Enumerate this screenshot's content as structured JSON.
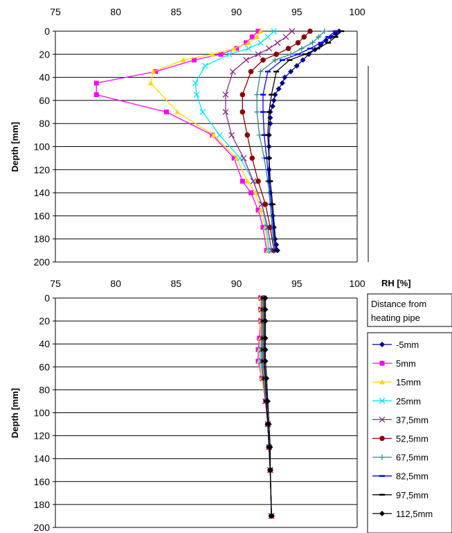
{
  "series_styles": [
    {
      "color": "#00008b",
      "marker": "diamond"
    },
    {
      "color": "#ff00ff",
      "marker": "square"
    },
    {
      "color": "#ffd700",
      "marker": "triangle"
    },
    {
      "color": "#00e5ff",
      "marker": "x"
    },
    {
      "color": "#8b2a8b",
      "marker": "x"
    },
    {
      "color": "#8b0000",
      "marker": "circle"
    },
    {
      "color": "#2e8b8b",
      "marker": "plus"
    },
    {
      "color": "#0000ff",
      "marker": "dash"
    },
    {
      "color": "#000000",
      "marker": "dash"
    },
    {
      "color": "#000000",
      "marker": "diamond"
    }
  ],
  "legend": {
    "title": "Distance from heating pipe",
    "title_lines": [
      "Distance from",
      "heating pipe"
    ],
    "placement": "right-middle"
  },
  "chart_data": [
    {
      "type": "line",
      "x_axis_position": "top",
      "xlabel": "RH [%]",
      "ylabel": "Depth [mm]",
      "xlim": [
        75,
        100
      ],
      "ylim": [
        0,
        200
      ],
      "y_inverted": true,
      "x_ticks": [
        75,
        80,
        85,
        90,
        95,
        100
      ],
      "y_ticks": [
        0,
        20,
        40,
        60,
        80,
        100,
        120,
        140,
        160,
        180,
        200
      ],
      "grid": "horizontal",
      "series": [
        {
          "name": "-5mm",
          "x": [
            98.5,
            98.2,
            97.8,
            97.4,
            97,
            96.5,
            96,
            95.5,
            95,
            94.5,
            94,
            93.8,
            93.5,
            93.2,
            93.1,
            93,
            92.8,
            92.8,
            92.8,
            92.7,
            92.7,
            92.7,
            92.7,
            92.7,
            92.8,
            92.9,
            93,
            93.1,
            93.2,
            93.3,
            93.4
          ],
          "y": [
            0,
            2,
            5,
            8,
            12,
            16,
            20,
            25,
            30,
            35,
            40,
            45,
            50,
            55,
            60,
            65,
            70,
            75,
            80,
            90,
            100,
            110,
            120,
            130,
            140,
            150,
            160,
            170,
            180,
            185,
            190
          ]
        },
        {
          "name": "5mm",
          "x": [
            91.8,
            91.3,
            90.8,
            90,
            88.7,
            86.5,
            83.3,
            78.4,
            78.4,
            84.2,
            88,
            89.8,
            90.5,
            91.2,
            91.8,
            92.2,
            92.5
          ],
          "y": [
            0,
            5,
            10,
            15,
            20,
            25,
            35,
            45,
            55,
            70,
            90,
            110,
            130,
            140,
            155,
            170,
            190
          ]
        },
        {
          "name": "15mm",
          "x": [
            92,
            91.7,
            91,
            89.8,
            88,
            85.6,
            83.1,
            82.9,
            85.1,
            88.1,
            90,
            90.9,
            91.6,
            92,
            92.4,
            92.6
          ],
          "y": [
            0,
            5,
            10,
            15,
            20,
            25,
            35,
            45,
            70,
            90,
            110,
            130,
            140,
            155,
            170,
            190
          ]
        },
        {
          "name": "25mm",
          "x": [
            93.1,
            92.6,
            92,
            91,
            89.4,
            87.4,
            86.6,
            86.7,
            87.2,
            88.6,
            90.3,
            91.4,
            92.1,
            92.5,
            92.7
          ],
          "y": [
            0,
            5,
            10,
            15,
            20,
            30,
            45,
            55,
            70,
            90,
            110,
            130,
            150,
            170,
            190
          ]
        },
        {
          "name": "37,5mm",
          "x": [
            94.6,
            94.1,
            93.4,
            92.7,
            91.8,
            90.8,
            89.7,
            89.1,
            89.1,
            89.6,
            90.6,
            91.4,
            92.1,
            92.6,
            92.9
          ],
          "y": [
            0,
            5,
            10,
            15,
            20,
            25,
            35,
            55,
            70,
            90,
            110,
            130,
            150,
            170,
            190
          ]
        },
        {
          "name": "52,5mm",
          "x": [
            96.1,
            95.6,
            95.1,
            94.3,
            93.3,
            92.2,
            91.2,
            90.5,
            90.5,
            90.9,
            91.3,
            91.8,
            92.4,
            92.8,
            93.1
          ],
          "y": [
            0,
            5,
            10,
            15,
            20,
            25,
            35,
            55,
            70,
            90,
            110,
            130,
            150,
            170,
            190
          ]
        },
        {
          "name": "67,5mm",
          "x": [
            97.3,
            96.8,
            96.3,
            95.4,
            94.5,
            93.2,
            92,
            91.7,
            91.7,
            91.9,
            92.3,
            92.6,
            92.8,
            93.1
          ],
          "y": [
            0,
            5,
            10,
            15,
            20,
            25,
            35,
            55,
            70,
            90,
            110,
            130,
            150,
            190
          ]
        },
        {
          "name": "82,5mm",
          "x": [
            98.2,
            97.6,
            97,
            96.1,
            95.1,
            93.8,
            92.6,
            92.2,
            92.2,
            92.3,
            92.5,
            92.7,
            92.9,
            93.2
          ],
          "y": [
            0,
            5,
            10,
            15,
            20,
            25,
            35,
            55,
            70,
            90,
            110,
            130,
            150,
            190
          ]
        },
        {
          "name": "97,5mm",
          "x": [
            98.7,
            98.2,
            97.6,
            96.7,
            95.7,
            94.4,
            93.3,
            92.9,
            92.7,
            92.6,
            92.7,
            92.8,
            93,
            93.3
          ],
          "y": [
            0,
            5,
            10,
            15,
            20,
            25,
            35,
            55,
            70,
            90,
            110,
            130,
            150,
            190
          ]
        }
      ]
    },
    {
      "type": "line",
      "xlabel": "",
      "ylabel": "Depth [mm]",
      "xlim": [
        75,
        100
      ],
      "ylim": [
        0,
        200
      ],
      "y_inverted": true,
      "x_ticks": [
        75,
        80,
        85,
        90,
        95,
        100
      ],
      "y_ticks": [
        0,
        20,
        40,
        60,
        80,
        100,
        120,
        140,
        160,
        180,
        200
      ],
      "grid": "horizontal",
      "legend": true,
      "series": [
        {
          "name": "-5mm",
          "x": [
            92.3,
            92.3,
            92.3,
            92.3,
            92.3,
            92.3,
            92.4,
            92.5,
            92.6,
            92.7,
            92.8,
            92.9
          ],
          "y": [
            0,
            10,
            20,
            35,
            45,
            55,
            70,
            90,
            110,
            130,
            150,
            190
          ]
        },
        {
          "name": "5mm",
          "x": [
            92,
            92,
            92,
            91.9,
            91.8,
            91.8,
            92.1,
            92.4,
            92.6,
            92.7,
            92.8,
            92.9
          ],
          "y": [
            0,
            10,
            20,
            35,
            45,
            55,
            70,
            90,
            110,
            130,
            150,
            190
          ]
        },
        {
          "name": "15mm",
          "x": [
            92,
            92,
            92,
            92,
            91.9,
            91.9,
            92.1,
            92.4,
            92.6,
            92.7,
            92.8,
            92.9
          ],
          "y": [
            0,
            10,
            20,
            35,
            45,
            55,
            70,
            90,
            110,
            130,
            150,
            190
          ]
        },
        {
          "name": "25mm",
          "x": [
            92.1,
            92.1,
            92.1,
            92.1,
            92,
            92,
            92.2,
            92.4,
            92.6,
            92.7,
            92.8,
            92.9
          ],
          "y": [
            0,
            10,
            20,
            35,
            45,
            55,
            70,
            90,
            110,
            130,
            150,
            190
          ]
        },
        {
          "name": "37,5mm",
          "x": [
            92.1,
            92.1,
            92.1,
            92.1,
            92.1,
            92.1,
            92.2,
            92.4,
            92.6,
            92.7,
            92.8,
            92.9
          ],
          "y": [
            0,
            10,
            20,
            35,
            45,
            55,
            70,
            90,
            110,
            130,
            150,
            190
          ]
        },
        {
          "name": "52,5mm",
          "x": [
            92.2,
            92.2,
            92.2,
            92.2,
            92.2,
            92.2,
            92.3,
            92.5,
            92.6,
            92.7,
            92.8,
            92.9
          ],
          "y": [
            0,
            10,
            20,
            35,
            45,
            55,
            70,
            90,
            110,
            130,
            150,
            190
          ]
        },
        {
          "name": "67,5mm",
          "x": [
            92.2,
            92.2,
            92.2,
            92.2,
            92.2,
            92.2,
            92.3,
            92.5,
            92.6,
            92.7,
            92.8,
            92.9
          ],
          "y": [
            0,
            10,
            20,
            35,
            45,
            55,
            70,
            90,
            110,
            130,
            150,
            190
          ]
        },
        {
          "name": "82,5mm",
          "x": [
            92.3,
            92.3,
            92.3,
            92.3,
            92.3,
            92.3,
            92.4,
            92.5,
            92.6,
            92.7,
            92.8,
            92.9
          ],
          "y": [
            0,
            10,
            20,
            35,
            45,
            55,
            70,
            90,
            110,
            130,
            150,
            190
          ]
        },
        {
          "name": "97,5mm",
          "x": [
            92.3,
            92.3,
            92.3,
            92.3,
            92.3,
            92.3,
            92.4,
            92.5,
            92.6,
            92.7,
            92.8,
            92.9
          ],
          "y": [
            0,
            10,
            20,
            35,
            45,
            55,
            70,
            90,
            110,
            130,
            150,
            190
          ]
        },
        {
          "name": "112,5mm",
          "x": [
            92.4,
            92.4,
            92.4,
            92.4,
            92.4,
            92.4,
            92.5,
            92.6,
            92.7,
            92.8,
            92.8,
            92.9
          ],
          "y": [
            0,
            10,
            20,
            35,
            45,
            55,
            70,
            90,
            110,
            130,
            150,
            190
          ]
        }
      ]
    }
  ]
}
